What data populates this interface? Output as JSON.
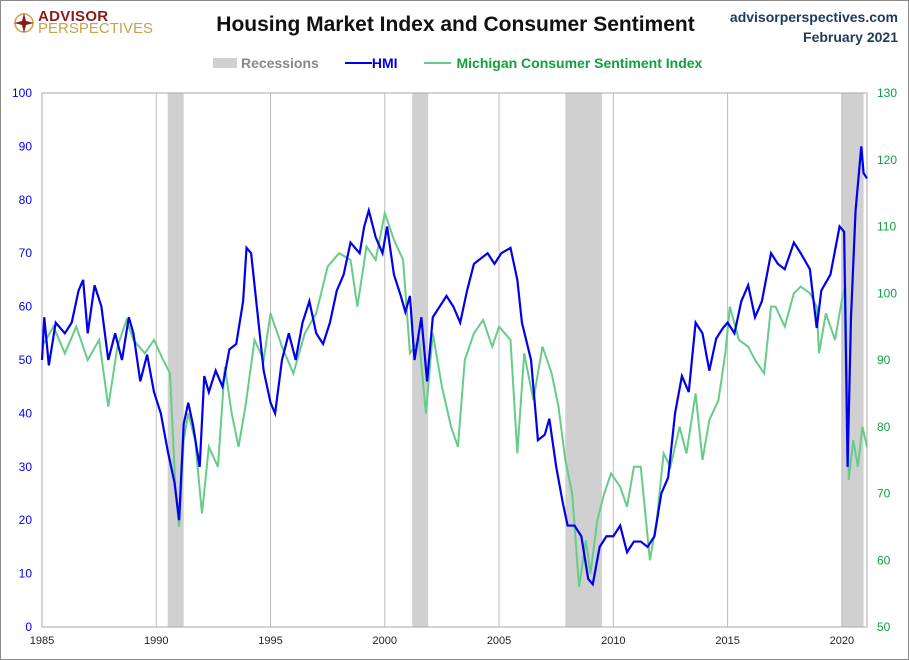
{
  "header": {
    "logo_line1": "ADVISOR",
    "logo_line2": "PERSPECTIVES",
    "site": "advisorperspectives.com",
    "date": "February 2021"
  },
  "colors": {
    "hmi": "#0000ee",
    "msi": "#66cc88",
    "recession": "#d0d0d0",
    "left_axis": "#0000ee",
    "right_axis": "#10a040"
  },
  "chart_data": {
    "type": "line",
    "title": "Housing Market Index and Consumer Sentiment",
    "legend": [
      "Recessions",
      "HMI",
      "Michigan Consumer Sentiment Index"
    ],
    "legend_placement": "top-center",
    "xlim": [
      1985,
      2021.1
    ],
    "x_ticks": [
      "1985",
      "1990",
      "1995",
      "2000",
      "2005",
      "2010",
      "2015",
      "2020"
    ],
    "y_left": {
      "lim": [
        0,
        100
      ],
      "ticks": [
        "0",
        "10",
        "20",
        "30",
        "40",
        "50",
        "60",
        "70",
        "80",
        "90",
        "100"
      ]
    },
    "y_right": {
      "lim": [
        50,
        130
      ],
      "ticks": [
        "50",
        "60",
        "70",
        "80",
        "90",
        "100",
        "110",
        "120",
        "130"
      ]
    },
    "recessions": [
      [
        1990.5,
        1991.2
      ],
      [
        2001.2,
        2001.9
      ],
      [
        2007.9,
        2009.5
      ],
      [
        2020.0,
        2020.95
      ]
    ],
    "series": [
      {
        "name": "HMI",
        "axis": "left",
        "points": [
          [
            1985,
            50
          ],
          [
            1985.1,
            58
          ],
          [
            1985.3,
            49
          ],
          [
            1985.6,
            57
          ],
          [
            1986,
            55
          ],
          [
            1986.3,
            57
          ],
          [
            1986.6,
            63
          ],
          [
            1986.8,
            65
          ],
          [
            1987,
            55
          ],
          [
            1987.3,
            64
          ],
          [
            1987.6,
            60
          ],
          [
            1987.9,
            50
          ],
          [
            1988.2,
            55
          ],
          [
            1988.5,
            50
          ],
          [
            1988.8,
            58
          ],
          [
            1989,
            55
          ],
          [
            1989.3,
            46
          ],
          [
            1989.6,
            51
          ],
          [
            1989.9,
            44
          ],
          [
            1990.2,
            40
          ],
          [
            1990.5,
            33
          ],
          [
            1990.8,
            27
          ],
          [
            1991,
            20
          ],
          [
            1991.2,
            38
          ],
          [
            1991.4,
            42
          ],
          [
            1991.6,
            38
          ],
          [
            1991.9,
            30
          ],
          [
            1992.1,
            47
          ],
          [
            1992.3,
            44
          ],
          [
            1992.6,
            48
          ],
          [
            1992.9,
            45
          ],
          [
            1993.2,
            52
          ],
          [
            1993.5,
            53
          ],
          [
            1993.8,
            61
          ],
          [
            1993.95,
            71
          ],
          [
            1994.15,
            70
          ],
          [
            1994.4,
            60
          ],
          [
            1994.7,
            48
          ],
          [
            1995,
            42
          ],
          [
            1995.2,
            40
          ],
          [
            1995.5,
            50
          ],
          [
            1995.8,
            55
          ],
          [
            1996.1,
            50
          ],
          [
            1996.4,
            57
          ],
          [
            1996.7,
            61
          ],
          [
            1997,
            55
          ],
          [
            1997.3,
            53
          ],
          [
            1997.6,
            57
          ],
          [
            1997.9,
            63
          ],
          [
            1998.2,
            66
          ],
          [
            1998.5,
            72
          ],
          [
            1998.9,
            70
          ],
          [
            1999.1,
            75
          ],
          [
            1999.3,
            78
          ],
          [
            1999.6,
            73
          ],
          [
            1999.9,
            70
          ],
          [
            2000.1,
            75
          ],
          [
            2000.4,
            66
          ],
          [
            2000.7,
            62
          ],
          [
            2000.9,
            59
          ],
          [
            2001.1,
            62
          ],
          [
            2001.3,
            50
          ],
          [
            2001.6,
            58
          ],
          [
            2001.85,
            46
          ],
          [
            2002.1,
            58
          ],
          [
            2002.4,
            60
          ],
          [
            2002.7,
            62
          ],
          [
            2003,
            60
          ],
          [
            2003.3,
            57
          ],
          [
            2003.6,
            63
          ],
          [
            2003.9,
            68
          ],
          [
            2004.2,
            69
          ],
          [
            2004.5,
            70
          ],
          [
            2004.8,
            68
          ],
          [
            2005.1,
            70
          ],
          [
            2005.5,
            71
          ],
          [
            2005.8,
            65
          ],
          [
            2006,
            57
          ],
          [
            2006.4,
            50
          ],
          [
            2006.7,
            35
          ],
          [
            2007,
            36
          ],
          [
            2007.2,
            39
          ],
          [
            2007.5,
            30
          ],
          [
            2007.8,
            23
          ],
          [
            2008,
            19
          ],
          [
            2008.3,
            19
          ],
          [
            2008.6,
            17
          ],
          [
            2008.9,
            9
          ],
          [
            2009.1,
            8
          ],
          [
            2009.4,
            15
          ],
          [
            2009.7,
            17
          ],
          [
            2010,
            17
          ],
          [
            2010.3,
            19
          ],
          [
            2010.6,
            14
          ],
          [
            2010.9,
            16
          ],
          [
            2011.2,
            16
          ],
          [
            2011.5,
            15
          ],
          [
            2011.8,
            17
          ],
          [
            2012.1,
            25
          ],
          [
            2012.4,
            28
          ],
          [
            2012.7,
            40
          ],
          [
            2013,
            47
          ],
          [
            2013.3,
            44
          ],
          [
            2013.6,
            57
          ],
          [
            2013.9,
            55
          ],
          [
            2014.2,
            48
          ],
          [
            2014.5,
            54
          ],
          [
            2014.8,
            56
          ],
          [
            2015,
            57
          ],
          [
            2015.3,
            55
          ],
          [
            2015.6,
            61
          ],
          [
            2015.9,
            64
          ],
          [
            2016.2,
            58
          ],
          [
            2016.5,
            61
          ],
          [
            2016.9,
            70
          ],
          [
            2017.2,
            68
          ],
          [
            2017.5,
            67
          ],
          [
            2017.9,
            72
          ],
          [
            2018.2,
            70
          ],
          [
            2018.6,
            67
          ],
          [
            2018.9,
            56
          ],
          [
            2019.1,
            63
          ],
          [
            2019.5,
            66
          ],
          [
            2019.9,
            75
          ],
          [
            2020.1,
            74
          ],
          [
            2020.25,
            30
          ],
          [
            2020.4,
            58
          ],
          [
            2020.6,
            78
          ],
          [
            2020.85,
            90
          ],
          [
            2020.95,
            85
          ],
          [
            2021.1,
            84
          ]
        ]
      },
      {
        "name": "Michigan Consumer Sentiment Index",
        "axis": "right",
        "points": [
          [
            1985,
            92
          ],
          [
            1985.5,
            95
          ],
          [
            1986,
            91
          ],
          [
            1986.5,
            95
          ],
          [
            1987,
            90
          ],
          [
            1987.5,
            93
          ],
          [
            1987.9,
            83
          ],
          [
            1988.3,
            92
          ],
          [
            1988.7,
            96
          ],
          [
            1989,
            93
          ],
          [
            1989.5,
            91
          ],
          [
            1989.9,
            93
          ],
          [
            1990.3,
            90
          ],
          [
            1990.6,
            88
          ],
          [
            1990.85,
            70
          ],
          [
            1991,
            65
          ],
          [
            1991.2,
            78
          ],
          [
            1991.4,
            82
          ],
          [
            1991.7,
            78
          ],
          [
            1992,
            67
          ],
          [
            1992.3,
            77
          ],
          [
            1992.7,
            74
          ],
          [
            1993,
            89
          ],
          [
            1993.3,
            82
          ],
          [
            1993.6,
            77
          ],
          [
            1993.9,
            83
          ],
          [
            1994.3,
            93
          ],
          [
            1994.7,
            90
          ],
          [
            1995,
            97
          ],
          [
            1995.5,
            92
          ],
          [
            1996,
            88
          ],
          [
            1996.5,
            94
          ],
          [
            1997,
            97
          ],
          [
            1997.5,
            104
          ],
          [
            1998,
            106
          ],
          [
            1998.5,
            105
          ],
          [
            1998.8,
            98
          ],
          [
            1999.2,
            107
          ],
          [
            1999.6,
            105
          ],
          [
            2000,
            112
          ],
          [
            2000.4,
            108
          ],
          [
            2000.8,
            105
          ],
          [
            2001.1,
            91
          ],
          [
            2001.5,
            93
          ],
          [
            2001.8,
            82
          ],
          [
            2002.1,
            94
          ],
          [
            2002.5,
            86
          ],
          [
            2002.9,
            80
          ],
          [
            2003.2,
            77
          ],
          [
            2003.5,
            90
          ],
          [
            2003.9,
            94
          ],
          [
            2004.3,
            96
          ],
          [
            2004.7,
            92
          ],
          [
            2005,
            95
          ],
          [
            2005.5,
            93
          ],
          [
            2005.8,
            76
          ],
          [
            2006.1,
            91
          ],
          [
            2006.5,
            84
          ],
          [
            2006.9,
            92
          ],
          [
            2007.3,
            88
          ],
          [
            2007.6,
            83
          ],
          [
            2007.9,
            75
          ],
          [
            2008.2,
            70
          ],
          [
            2008.5,
            56
          ],
          [
            2008.8,
            63
          ],
          [
            2009,
            58
          ],
          [
            2009.3,
            66
          ],
          [
            2009.6,
            70
          ],
          [
            2009.9,
            73
          ],
          [
            2010.3,
            71
          ],
          [
            2010.6,
            68
          ],
          [
            2010.9,
            74
          ],
          [
            2011.2,
            74
          ],
          [
            2011.6,
            60
          ],
          [
            2011.9,
            66
          ],
          [
            2012.2,
            76
          ],
          [
            2012.5,
            74
          ],
          [
            2012.9,
            80
          ],
          [
            2013.2,
            76
          ],
          [
            2013.6,
            85
          ],
          [
            2013.9,
            75
          ],
          [
            2014.2,
            81
          ],
          [
            2014.6,
            84
          ],
          [
            2014.9,
            91
          ],
          [
            2015.1,
            98
          ],
          [
            2015.5,
            93
          ],
          [
            2015.9,
            92
          ],
          [
            2016.2,
            90
          ],
          [
            2016.6,
            88
          ],
          [
            2016.9,
            98
          ],
          [
            2017.1,
            98
          ],
          [
            2017.5,
            95
          ],
          [
            2017.9,
            100
          ],
          [
            2018.2,
            101
          ],
          [
            2018.6,
            100
          ],
          [
            2018.9,
            98
          ],
          [
            2019,
            91
          ],
          [
            2019.3,
            97
          ],
          [
            2019.7,
            93
          ],
          [
            2020,
            99
          ],
          [
            2020.15,
            101
          ],
          [
            2020.3,
            72
          ],
          [
            2020.5,
            78
          ],
          [
            2020.7,
            74
          ],
          [
            2020.9,
            80
          ],
          [
            2021.1,
            77
          ]
        ]
      }
    ]
  }
}
